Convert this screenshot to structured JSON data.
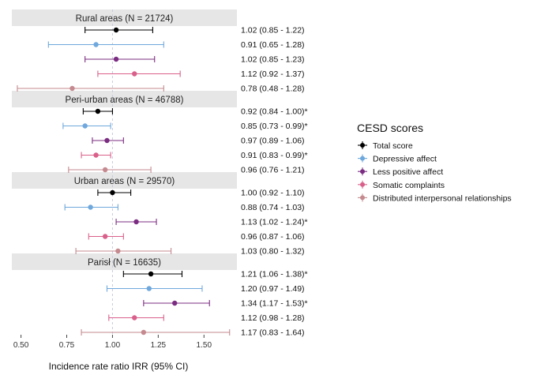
{
  "chart_data": {
    "type": "forest",
    "xlabel": "Incidence rate ratio IRR (95% CI)",
    "xlim": [
      0.45,
      1.68
    ],
    "xticks": [
      0.5,
      0.75,
      1.0,
      1.25,
      1.5
    ],
    "xtick_labels": [
      "0.50",
      "0.75",
      "1.00",
      "1.25",
      "1.50"
    ],
    "reference_line": 1.0,
    "legend": {
      "title": "CESD scores",
      "position": "right",
      "entries": [
        {
          "name": "Total score",
          "color": "#000000"
        },
        {
          "name": "Depressive affect",
          "color": "#6fa8dc"
        },
        {
          "name": "Less positive affect",
          "color": "#7b2d82"
        },
        {
          "name": "Somatic complaints",
          "color": "#d9608a"
        },
        {
          "name": "Distributed interpersonal relationships",
          "color": "#c48a8f"
        }
      ]
    },
    "panels": [
      {
        "title": "Rural areas (N = 21724)",
        "rows": [
          {
            "series": "Total score",
            "est": 1.02,
            "lo": 0.85,
            "hi": 1.22,
            "label": "1.02 (0.85 - 1.22)"
          },
          {
            "series": "Depressive affect",
            "est": 0.91,
            "lo": 0.65,
            "hi": 1.28,
            "label": "0.91 (0.65 - 1.28)"
          },
          {
            "series": "Less positive affect",
            "est": 1.02,
            "lo": 0.85,
            "hi": 1.23,
            "label": "1.02 (0.85 - 1.23)"
          },
          {
            "series": "Somatic complaints",
            "est": 1.12,
            "lo": 0.92,
            "hi": 1.37,
            "label": "1.12 (0.92 - 1.37)"
          },
          {
            "series": "Distributed interpersonal relationships",
            "est": 0.78,
            "lo": 0.48,
            "hi": 1.28,
            "label": "0.78 (0.48 - 1.28)"
          }
        ]
      },
      {
        "title": "Peri-urban areas (N = 46788)",
        "rows": [
          {
            "series": "Total score",
            "est": 0.92,
            "lo": 0.84,
            "hi": 1.0,
            "label": "0.92 (0.84 - 1.00)*"
          },
          {
            "series": "Depressive affect",
            "est": 0.85,
            "lo": 0.73,
            "hi": 0.99,
            "label": "0.85 (0.73 - 0.99)*"
          },
          {
            "series": "Less positive affect",
            "est": 0.97,
            "lo": 0.89,
            "hi": 1.06,
            "label": "0.97 (0.89 - 1.06)"
          },
          {
            "series": "Somatic complaints",
            "est": 0.91,
            "lo": 0.83,
            "hi": 0.99,
            "label": "0.91 (0.83 - 0.99)*"
          },
          {
            "series": "Distributed interpersonal relationships",
            "est": 0.96,
            "lo": 0.76,
            "hi": 1.21,
            "label": "0.96 (0.76 - 1.21)"
          }
        ]
      },
      {
        "title": "Urban areas (N = 29570)",
        "rows": [
          {
            "series": "Total score",
            "est": 1.0,
            "lo": 0.92,
            "hi": 1.1,
            "label": "1.00 (0.92 - 1.10)"
          },
          {
            "series": "Depressive affect",
            "est": 0.88,
            "lo": 0.74,
            "hi": 1.03,
            "label": "0.88 (0.74 - 1.03)"
          },
          {
            "series": "Less positive affect",
            "est": 1.13,
            "lo": 1.02,
            "hi": 1.24,
            "label": "1.13 (1.02 - 1.24)*"
          },
          {
            "series": "Somatic complaints",
            "est": 0.96,
            "lo": 0.87,
            "hi": 1.06,
            "label": "0.96 (0.87 - 1.06)"
          },
          {
            "series": "Distributed interpersonal relationships",
            "est": 1.03,
            "lo": 0.8,
            "hi": 1.32,
            "label": "1.03 (0.80 - 1.32)"
          }
        ]
      },
      {
        "title": "Parisł (N = 16635)",
        "rows": [
          {
            "series": "Total score",
            "est": 1.21,
            "lo": 1.06,
            "hi": 1.38,
            "label": "1.21 (1.06 - 1.38)*"
          },
          {
            "series": "Depressive affect",
            "est": 1.2,
            "lo": 0.97,
            "hi": 1.49,
            "label": "1.20 (0.97 - 1.49)"
          },
          {
            "series": "Less positive affect",
            "est": 1.34,
            "lo": 1.17,
            "hi": 1.53,
            "label": "1.34 (1.17 - 1.53)*"
          },
          {
            "series": "Somatic complaints",
            "est": 1.12,
            "lo": 0.98,
            "hi": 1.28,
            "label": "1.12 (0.98 - 1.28)"
          },
          {
            "series": "Distributed interpersonal relationships",
            "est": 1.17,
            "lo": 0.83,
            "hi": 1.64,
            "label": "1.17 (0.83 - 1.64)"
          }
        ]
      }
    ]
  }
}
